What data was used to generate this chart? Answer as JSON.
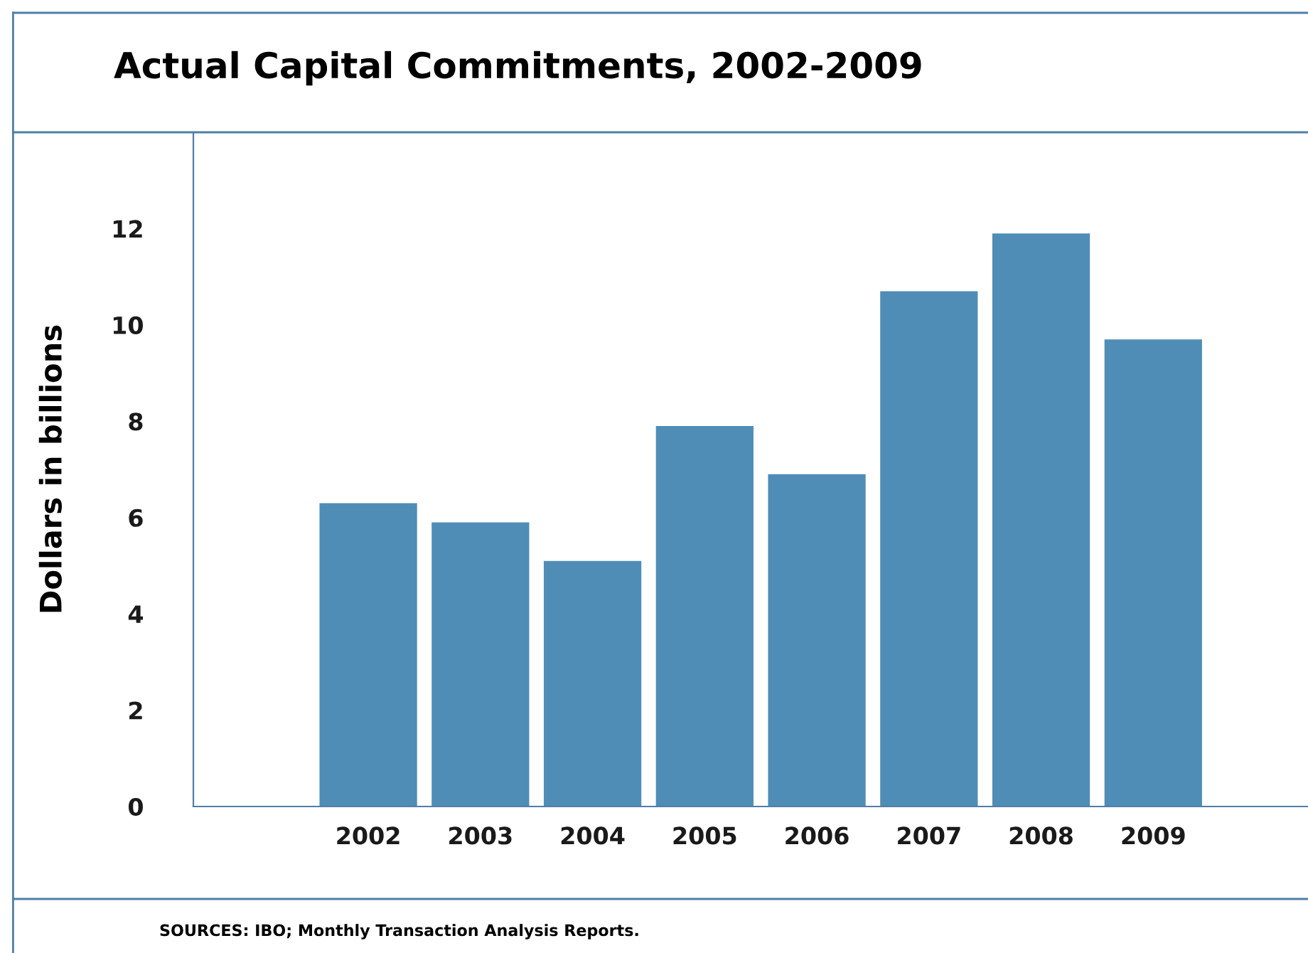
{
  "chart_data": {
    "type": "bar",
    "title": "Actual Capital Commitments, 2002-2009",
    "ylabel": "Dollars in billions",
    "categories": [
      "2002",
      "2003",
      "2004",
      "2005",
      "2006",
      "2007",
      "2008",
      "2009"
    ],
    "values": [
      6.3,
      5.9,
      5.1,
      7.9,
      6.9,
      10.7,
      11.9,
      9.7
    ],
    "color": "#4f8db6",
    "ylim": [
      0,
      14
    ],
    "yticks": [
      0,
      2,
      4,
      6,
      8,
      10,
      12
    ],
    "grid": false,
    "legend": false,
    "annotations": [
      "SOURCES: IBO; Monthly Transaction Analysis Reports."
    ]
  }
}
